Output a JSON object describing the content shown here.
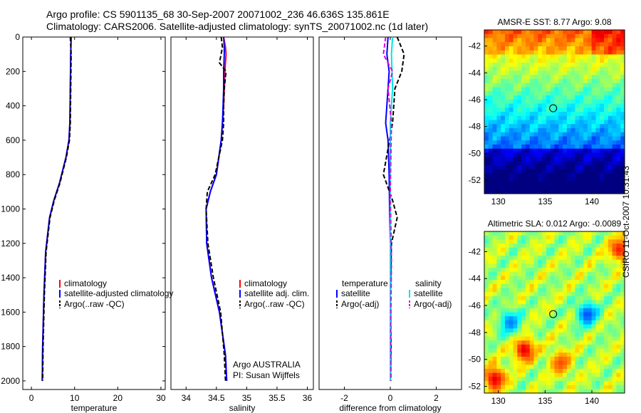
{
  "header": {
    "line1": "Argo profile: CS 5901135_68 30-Sep-2007 20071002_236 46.636S 135.861E",
    "line2": "Climatology: CARS2006. Satellite-adjusted climatology: synTS_20071002.nc (1d later)"
  },
  "stamp": "CSIRO 11-Oct-2007 10:31:43",
  "colors": {
    "climatology": "#ff0000",
    "satellite": "#0000ff",
    "argo": "#000000",
    "sal_satellite": "#00e5e5",
    "sal_argo": "#e000e0"
  },
  "chart_data": [
    {
      "type": "line",
      "id": "temperature",
      "xlabel": "temperature",
      "ylabel": "",
      "xlim": [
        -2,
        31
      ],
      "ylim": [
        2050,
        0
      ],
      "xticks": [
        0,
        10,
        20,
        30
      ],
      "yticks": [
        0,
        200,
        400,
        600,
        800,
        1000,
        1200,
        1400,
        1600,
        1800,
        2000
      ],
      "legend": [
        "climatology",
        "satellite-adjusted climatology",
        "Argo(..raw -QC)"
      ],
      "series": [
        {
          "name": "climatology",
          "x": [
            9.2,
            9.1,
            9.0,
            8.9,
            8.7,
            8.0,
            6.5,
            5.2,
            4.2,
            3.3,
            2.9,
            2.6,
            2.5
          ],
          "y": [
            0,
            100,
            300,
            500,
            600,
            700,
            850,
            950,
            1050,
            1250,
            1500,
            1800,
            2000
          ]
        },
        {
          "name": "satellite",
          "x": [
            9.2,
            9.1,
            9.0,
            8.9,
            8.7,
            8.0,
            6.5,
            5.2,
            4.2,
            3.3,
            2.9,
            2.6,
            2.5
          ],
          "y": [
            0,
            100,
            300,
            500,
            600,
            700,
            850,
            950,
            1050,
            1250,
            1500,
            1800,
            2000
          ]
        },
        {
          "name": "argo",
          "x": [
            9.0,
            9.2,
            9.1,
            9.0,
            8.8,
            8.1,
            6.6,
            5.3,
            4.3,
            3.4,
            3.0,
            2.7,
            2.6
          ],
          "y": [
            0,
            100,
            300,
            500,
            600,
            700,
            850,
            950,
            1050,
            1250,
            1500,
            1800,
            2000
          ]
        }
      ]
    },
    {
      "type": "line",
      "id": "salinity",
      "xlabel": "salinity",
      "xlim": [
        33.75,
        36.1
      ],
      "ylim": [
        2050,
        0
      ],
      "xticks": [
        34,
        34.5,
        35,
        35.5,
        36
      ],
      "xticklabels": [
        "34",
        "34.5",
        "35",
        "35.5",
        "36"
      ],
      "legend": [
        "climatology",
        "satellite adj. clim.",
        "Argo(..raw -QC)"
      ],
      "annotation": [
        "Argo AUSTRALIA",
        "PI: Susan Wijffels"
      ],
      "series": [
        {
          "name": "climatology",
          "x": [
            34.62,
            34.65,
            34.66,
            34.64,
            34.63,
            34.62,
            34.6,
            34.58,
            34.5,
            34.4,
            34.33,
            34.34,
            34.42,
            34.55,
            34.65,
            34.67
          ],
          "y": [
            0,
            60,
            100,
            200,
            300,
            400,
            500,
            600,
            800,
            900,
            1000,
            1200,
            1400,
            1600,
            1850,
            2000
          ]
        },
        {
          "name": "satellite",
          "x": [
            34.62,
            34.63,
            34.63,
            34.62,
            34.62,
            34.61,
            34.6,
            34.58,
            34.5,
            34.4,
            34.33,
            34.34,
            34.42,
            34.55,
            34.65,
            34.67
          ],
          "y": [
            0,
            60,
            100,
            200,
            300,
            400,
            500,
            600,
            800,
            900,
            1000,
            1200,
            1400,
            1600,
            1850,
            2000
          ]
        },
        {
          "name": "argo",
          "x": [
            34.58,
            34.6,
            34.55,
            34.66,
            34.63,
            34.62,
            34.62,
            34.6,
            34.48,
            34.35,
            34.33,
            34.36,
            34.45,
            34.57,
            34.63,
            34.65
          ],
          "y": [
            0,
            60,
            150,
            200,
            300,
            400,
            500,
            600,
            800,
            900,
            1000,
            1200,
            1400,
            1600,
            1850,
            2000
          ]
        }
      ]
    },
    {
      "type": "line",
      "id": "difference",
      "xlabel": "difference from climatology",
      "xlim": [
        -3.1,
        3.1
      ],
      "ylim": [
        2050,
        0
      ],
      "xticks": [
        -2,
        0,
        2
      ],
      "legend_left_title": "temperature",
      "legend_right_title": "salinity",
      "legend_left": [
        "satellite",
        "Argo(-adj)"
      ],
      "legend_right": [
        "satellite",
        "Argo(-adj)"
      ],
      "series": [
        {
          "name": "temperature satellite",
          "x": [
            -0.1,
            -0.15,
            -0.05,
            -0.1,
            -0.2,
            -0.1,
            -0.05,
            -0.03,
            0,
            0,
            0,
            0
          ],
          "y": [
            0,
            100,
            200,
            300,
            500,
            600,
            800,
            1000,
            1200,
            1500,
            1800,
            2000
          ]
        },
        {
          "name": "temperature Argo(-adj)",
          "x": [
            0.3,
            0.6,
            0.5,
            0.2,
            0.1,
            -0.1,
            -0.3,
            0.1,
            0.3,
            0.05,
            0,
            0.03,
            0
          ],
          "y": [
            0,
            100,
            200,
            300,
            500,
            650,
            800,
            950,
            1050,
            1200,
            1500,
            1800,
            2000
          ]
        },
        {
          "name": "salinity satellite",
          "x": [
            0.1,
            0.05,
            0.1,
            0,
            0,
            0,
            0,
            0,
            0
          ],
          "y": [
            0,
            100,
            300,
            500,
            800,
            1100,
            1400,
            1700,
            2000
          ]
        },
        {
          "name": "salinity Argo(-adj)",
          "x": [
            -0.2,
            -0.3,
            0.1,
            -0.1,
            0.05,
            0,
            0.05,
            0.02,
            0.03
          ],
          "y": [
            0,
            100,
            200,
            300,
            500,
            900,
            1300,
            1700,
            2000
          ]
        }
      ]
    },
    {
      "type": "heatmap",
      "id": "amsre_sst",
      "title": "AMSR-E SST: 8.77 Argo: 9.08",
      "xlim": [
        128.5,
        143.5
      ],
      "ylim": [
        -53,
        -40.8
      ],
      "xticks": [
        130,
        135,
        140
      ],
      "yticks": [
        -42,
        -44,
        -46,
        -48,
        -50,
        -52
      ],
      "marker": {
        "lon": 135.861,
        "lat": -46.636
      }
    },
    {
      "type": "heatmap",
      "id": "altimetric_sla",
      "title": "Altimetric SLA: 0.012 Argo: -0.0089",
      "xlim": [
        128.5,
        143.5
      ],
      "ylim": [
        -52.5,
        -40.5
      ],
      "xticks": [
        130,
        135,
        140
      ],
      "yticks": [
        -42,
        -44,
        -46,
        -48,
        -50,
        -52
      ],
      "marker": {
        "lon": 135.861,
        "lat": -46.636
      }
    }
  ]
}
